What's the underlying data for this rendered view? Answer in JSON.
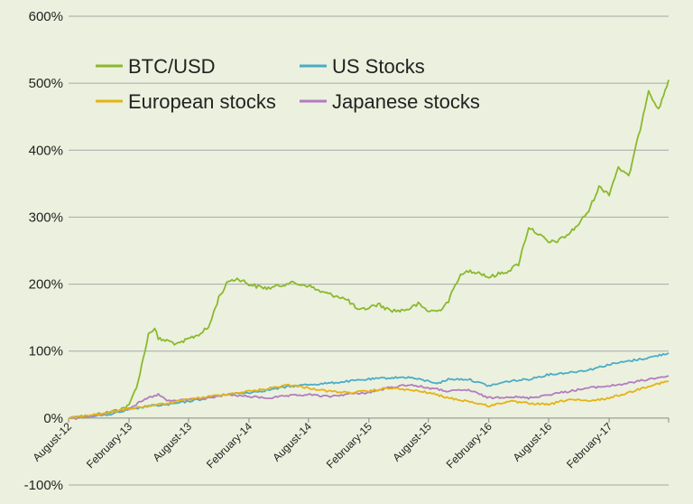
{
  "chart_data": {
    "type": "line",
    "title": "",
    "xlabel": "",
    "ylabel": "",
    "ylim": [
      -100,
      600
    ],
    "y_ticks": [
      -100,
      0,
      100,
      200,
      300,
      400,
      500,
      600
    ],
    "y_tick_labels": [
      "-100%",
      "0%",
      "100%",
      "200%",
      "300%",
      "400%",
      "500%",
      "600%"
    ],
    "x_range": [
      "2012-08",
      "2017-08"
    ],
    "x_ticks": [
      {
        "date": "2012-08",
        "label": "August-12"
      },
      {
        "date": "2013-02",
        "label": "February-13"
      },
      {
        "date": "2013-08",
        "label": "August-13"
      },
      {
        "date": "2014-02",
        "label": "February-14"
      },
      {
        "date": "2014-08",
        "label": "August-14"
      },
      {
        "date": "2015-02",
        "label": "February-15"
      },
      {
        "date": "2015-08",
        "label": "August-15"
      },
      {
        "date": "2016-02",
        "label": "February-16"
      },
      {
        "date": "2016-08",
        "label": "August-16"
      },
      {
        "date": "2017-02",
        "label": "February-17"
      }
    ],
    "grid": true,
    "legend_position": "top-left",
    "series": [
      {
        "name": "BTC/USD",
        "color": "#8cb82e",
        "points": [
          [
            "2012-08",
            0
          ],
          [
            "2012-10",
            3
          ],
          [
            "2012-12",
            8
          ],
          [
            "2013-02",
            18
          ],
          [
            "2013-03",
            55
          ],
          [
            "2013-04",
            125
          ],
          [
            "2013-04-20",
            135
          ],
          [
            "2013-05",
            118
          ],
          [
            "2013-06",
            115
          ],
          [
            "2013-07",
            110
          ],
          [
            "2013-08",
            118
          ],
          [
            "2013-09",
            125
          ],
          [
            "2013-10",
            135
          ],
          [
            "2013-11",
            180
          ],
          [
            "2013-12",
            205
          ],
          [
            "2014-01",
            208
          ],
          [
            "2014-02",
            200
          ],
          [
            "2014-03",
            196
          ],
          [
            "2014-04",
            194
          ],
          [
            "2014-05",
            197
          ],
          [
            "2014-06",
            202
          ],
          [
            "2014-07",
            200
          ],
          [
            "2014-08",
            198
          ],
          [
            "2014-09",
            190
          ],
          [
            "2014-10",
            185
          ],
          [
            "2014-11",
            182
          ],
          [
            "2014-12",
            175
          ],
          [
            "2015-01",
            160
          ],
          [
            "2015-02",
            165
          ],
          [
            "2015-03",
            170
          ],
          [
            "2015-04",
            162
          ],
          [
            "2015-05",
            160
          ],
          [
            "2015-06",
            163
          ],
          [
            "2015-07",
            170
          ],
          [
            "2015-08",
            160
          ],
          [
            "2015-09",
            160
          ],
          [
            "2015-10",
            175
          ],
          [
            "2015-11",
            210
          ],
          [
            "2015-12",
            220
          ],
          [
            "2016-01",
            218
          ],
          [
            "2016-02",
            210
          ],
          [
            "2016-03",
            215
          ],
          [
            "2016-04",
            220
          ],
          [
            "2016-05",
            230
          ],
          [
            "2016-06",
            285
          ],
          [
            "2016-07",
            275
          ],
          [
            "2016-08",
            262
          ],
          [
            "2016-09",
            265
          ],
          [
            "2016-10",
            275
          ],
          [
            "2016-11",
            290
          ],
          [
            "2016-12",
            310
          ],
          [
            "2017-01",
            345
          ],
          [
            "2017-02",
            335
          ],
          [
            "2017-03",
            375
          ],
          [
            "2017-04",
            360
          ],
          [
            "2017-05",
            420
          ],
          [
            "2017-06",
            490
          ],
          [
            "2017-07",
            460
          ],
          [
            "2017-08",
            505
          ]
        ]
      },
      {
        "name": "US Stocks",
        "color": "#4bacc6",
        "points": [
          [
            "2012-08",
            0
          ],
          [
            "2012-10",
            3
          ],
          [
            "2012-12",
            5
          ],
          [
            "2013-02",
            12
          ],
          [
            "2013-04",
            18
          ],
          [
            "2013-06",
            20
          ],
          [
            "2013-08",
            25
          ],
          [
            "2013-10",
            30
          ],
          [
            "2013-12",
            36
          ],
          [
            "2014-02",
            38
          ],
          [
            "2014-04",
            42
          ],
          [
            "2014-06",
            47
          ],
          [
            "2014-08",
            50
          ],
          [
            "2014-10",
            52
          ],
          [
            "2014-12",
            55
          ],
          [
            "2015-02",
            58
          ],
          [
            "2015-04",
            60
          ],
          [
            "2015-06",
            61
          ],
          [
            "2015-08",
            55
          ],
          [
            "2015-09",
            52
          ],
          [
            "2015-10",
            58
          ],
          [
            "2015-12",
            58
          ],
          [
            "2016-02",
            48
          ],
          [
            "2016-04",
            55
          ],
          [
            "2016-06",
            58
          ],
          [
            "2016-08",
            65
          ],
          [
            "2016-10",
            68
          ],
          [
            "2016-12",
            72
          ],
          [
            "2017-02",
            80
          ],
          [
            "2017-04",
            85
          ],
          [
            "2017-06",
            90
          ],
          [
            "2017-08",
            97
          ]
        ]
      },
      {
        "name": "European stocks",
        "color": "#e6b214",
        "points": [
          [
            "2012-08",
            0
          ],
          [
            "2012-10",
            4
          ],
          [
            "2012-12",
            8
          ],
          [
            "2013-02",
            14
          ],
          [
            "2013-04",
            18
          ],
          [
            "2013-06",
            22
          ],
          [
            "2013-08",
            28
          ],
          [
            "2013-10",
            32
          ],
          [
            "2013-12",
            36
          ],
          [
            "2014-02",
            40
          ],
          [
            "2014-04",
            44
          ],
          [
            "2014-06",
            50
          ],
          [
            "2014-08",
            45
          ],
          [
            "2014-10",
            40
          ],
          [
            "2014-12",
            38
          ],
          [
            "2015-02",
            40
          ],
          [
            "2015-04",
            45
          ],
          [
            "2015-06",
            42
          ],
          [
            "2015-08",
            38
          ],
          [
            "2015-10",
            30
          ],
          [
            "2015-12",
            25
          ],
          [
            "2016-02",
            18
          ],
          [
            "2016-04",
            25
          ],
          [
            "2016-06",
            22
          ],
          [
            "2016-08",
            20
          ],
          [
            "2016-10",
            28
          ],
          [
            "2016-12",
            25
          ],
          [
            "2017-02",
            30
          ],
          [
            "2017-04",
            38
          ],
          [
            "2017-06",
            48
          ],
          [
            "2017-08",
            55
          ]
        ]
      },
      {
        "name": "Japanese stocks",
        "color": "#b37cc0",
        "points": [
          [
            "2012-08",
            0
          ],
          [
            "2012-10",
            2
          ],
          [
            "2012-12",
            8
          ],
          [
            "2013-02",
            15
          ],
          [
            "2013-04",
            30
          ],
          [
            "2013-05",
            35
          ],
          [
            "2013-06",
            25
          ],
          [
            "2013-08",
            28
          ],
          [
            "2013-10",
            30
          ],
          [
            "2013-12",
            35
          ],
          [
            "2014-02",
            32
          ],
          [
            "2014-04",
            30
          ],
          [
            "2014-06",
            33
          ],
          [
            "2014-08",
            35
          ],
          [
            "2014-10",
            32
          ],
          [
            "2014-12",
            36
          ],
          [
            "2015-02",
            38
          ],
          [
            "2015-04",
            45
          ],
          [
            "2015-06",
            50
          ],
          [
            "2015-08",
            45
          ],
          [
            "2015-10",
            40
          ],
          [
            "2015-12",
            42
          ],
          [
            "2016-02",
            30
          ],
          [
            "2016-04",
            32
          ],
          [
            "2016-06",
            30
          ],
          [
            "2016-08",
            35
          ],
          [
            "2016-10",
            40
          ],
          [
            "2016-12",
            45
          ],
          [
            "2017-02",
            48
          ],
          [
            "2017-04",
            52
          ],
          [
            "2017-06",
            58
          ],
          [
            "2017-08",
            63
          ]
        ]
      }
    ]
  }
}
